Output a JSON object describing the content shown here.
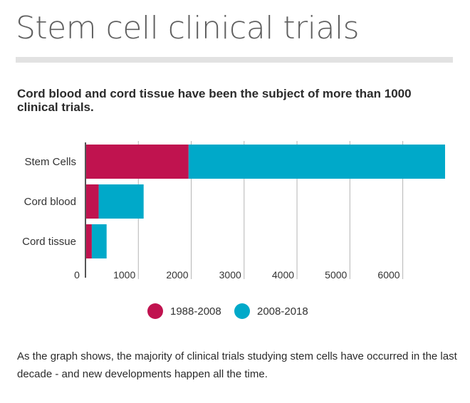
{
  "page": {
    "title": "Stem cell clinical trials",
    "subtitle": "Cord blood and cord tissue have been the subject of more than 1000 clinical trials.",
    "footer": "As the graph shows, the majority of clinical trials studying stem cells have occurred in the last decade - and new developments happen all the time."
  },
  "chart_data": {
    "type": "bar",
    "orientation": "horizontal",
    "stacked": true,
    "categories": [
      "Stem Cells",
      "Cord blood",
      "Cord tissue"
    ],
    "series": [
      {
        "name": "1988-2008",
        "values": [
          1950,
          250,
          120
        ],
        "color": "#c0134f"
      },
      {
        "name": "2008-2018",
        "values": [
          4850,
          850,
          280
        ],
        "color": "#00a9c9"
      }
    ],
    "x_ticks": [
      0,
      1000,
      2000,
      3000,
      4000,
      5000,
      6000
    ],
    "xlim": [
      0,
      6800
    ],
    "grid": true,
    "legend_position": "bottom-center"
  }
}
